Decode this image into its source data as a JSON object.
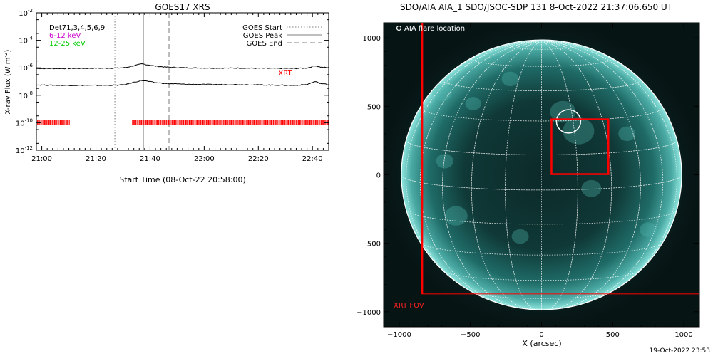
{
  "chart_data": [
    {
      "type": "line",
      "title": "GOES17 XRS",
      "xlabel": "Start Time (08-Oct-22 20:58:00)",
      "ylabel": "X-ray Flux (W m",
      "ylabel_exp": "-2",
      "ylabel_tail": ")",
      "x_unit": "minutes since 20:58:00",
      "xlim": [
        0,
        108
      ],
      "ylim_log10": [
        -12,
        -2
      ],
      "x_ticks": [
        {
          "label": "21:00",
          "value": 2
        },
        {
          "label": "21:20",
          "value": 22
        },
        {
          "label": "21:40",
          "value": 42
        },
        {
          "label": "22:00",
          "value": 62
        },
        {
          "label": "22:20",
          "value": 82
        },
        {
          "label": "22:40",
          "value": 102
        }
      ],
      "y_ticks": [
        {
          "label_base": "10",
          "label_exp": "-12",
          "value": -12
        },
        {
          "label_base": "10",
          "label_exp": "-10",
          "value": -10
        },
        {
          "label_base": "10",
          "label_exp": "-8",
          "value": -8
        },
        {
          "label_base": "10",
          "label_exp": "-6",
          "value": -6
        },
        {
          "label_base": "10",
          "label_exp": "-4",
          "value": -4
        },
        {
          "label_base": "10",
          "label_exp": "-2",
          "value": -2
        }
      ],
      "channels": [
        {
          "name": "Det71,3,4,5,6,9",
          "color": "#000000"
        },
        {
          "name": "6-12 keV",
          "color": "#cc00cc"
        },
        {
          "name": "12-25 keV",
          "color": "#00cc00"
        }
      ],
      "legend": [
        {
          "name": "GOES Start",
          "style": "dotted"
        },
        {
          "name": "GOES Peak",
          "style": "solid"
        },
        {
          "name": "GOES End",
          "style": "dashed"
        }
      ],
      "vlines": [
        {
          "name": "GOES Start",
          "x": 29,
          "style": "dotted",
          "color": "#999999"
        },
        {
          "name": "GOES Peak",
          "x": 39.5,
          "style": "solid",
          "color": "#999999"
        },
        {
          "name": "GOES End",
          "x": 49,
          "style": "dashed",
          "color": "#999999"
        }
      ],
      "series": [
        {
          "name": "GOES high",
          "color": "#000000",
          "x": [
            0,
            10,
            20,
            30,
            33,
            36,
            39,
            41,
            44,
            48,
            55,
            65,
            75,
            85,
            95,
            100,
            103,
            105,
            108
          ],
          "log10_y": [
            -6.05,
            -6.05,
            -6.04,
            -6.02,
            -5.98,
            -5.85,
            -5.72,
            -5.78,
            -5.88,
            -5.95,
            -6.0,
            -6.02,
            -6.02,
            -6.04,
            -6.05,
            -6.02,
            -5.85,
            -5.95,
            -6.0
          ]
        },
        {
          "name": "GOES low",
          "color": "#000000",
          "x": [
            0,
            10,
            20,
            30,
            33,
            36,
            39,
            41,
            44,
            48,
            55,
            65,
            75,
            85,
            95,
            100,
            103,
            105,
            108
          ],
          "log10_y": [
            -7.25,
            -7.28,
            -7.28,
            -7.27,
            -7.22,
            -7.05,
            -6.92,
            -6.98,
            -7.08,
            -7.15,
            -7.2,
            -7.22,
            -7.22,
            -7.25,
            -7.28,
            -7.22,
            -7.0,
            -7.15,
            -7.22
          ]
        }
      ],
      "xrt_label": "XRT",
      "xrt_label_color": "#ff0000",
      "xrt_coverage": [
        {
          "x_start": 0,
          "x_end": 12.5
        },
        {
          "x_start": 35.5,
          "x_end": 108
        }
      ]
    },
    {
      "type": "image",
      "title": "SDO/AIA AIA_1 SDO/JSOC-SDP 131  8-Oct-2022 21:37:06.650 UT",
      "xlabel": "X (arcsec)",
      "xlim": [
        -1110,
        1110
      ],
      "ylim": [
        -1110,
        1110
      ],
      "x_ticks": [
        -1000,
        -500,
        0,
        500,
        1000
      ],
      "y_ticks": [
        -1000,
        -500,
        0,
        500,
        1000
      ],
      "solar_radius_arcsec": 985,
      "flare_location_label": "AIA flare location",
      "flare_location": {
        "x": 190,
        "y": 390,
        "radius": 85
      },
      "xrt_fov_label": "XRT FOV",
      "xrt_fov": {
        "x0": -840,
        "x1": 1110,
        "y0": -870,
        "y1": 1110
      },
      "target_box": {
        "x0": 70,
        "x1": 470,
        "y0": 5,
        "y1": 405
      },
      "overlay_color": "#ff0000"
    }
  ],
  "footer": {
    "timestamp": "19-Oct-2022 23:53"
  }
}
